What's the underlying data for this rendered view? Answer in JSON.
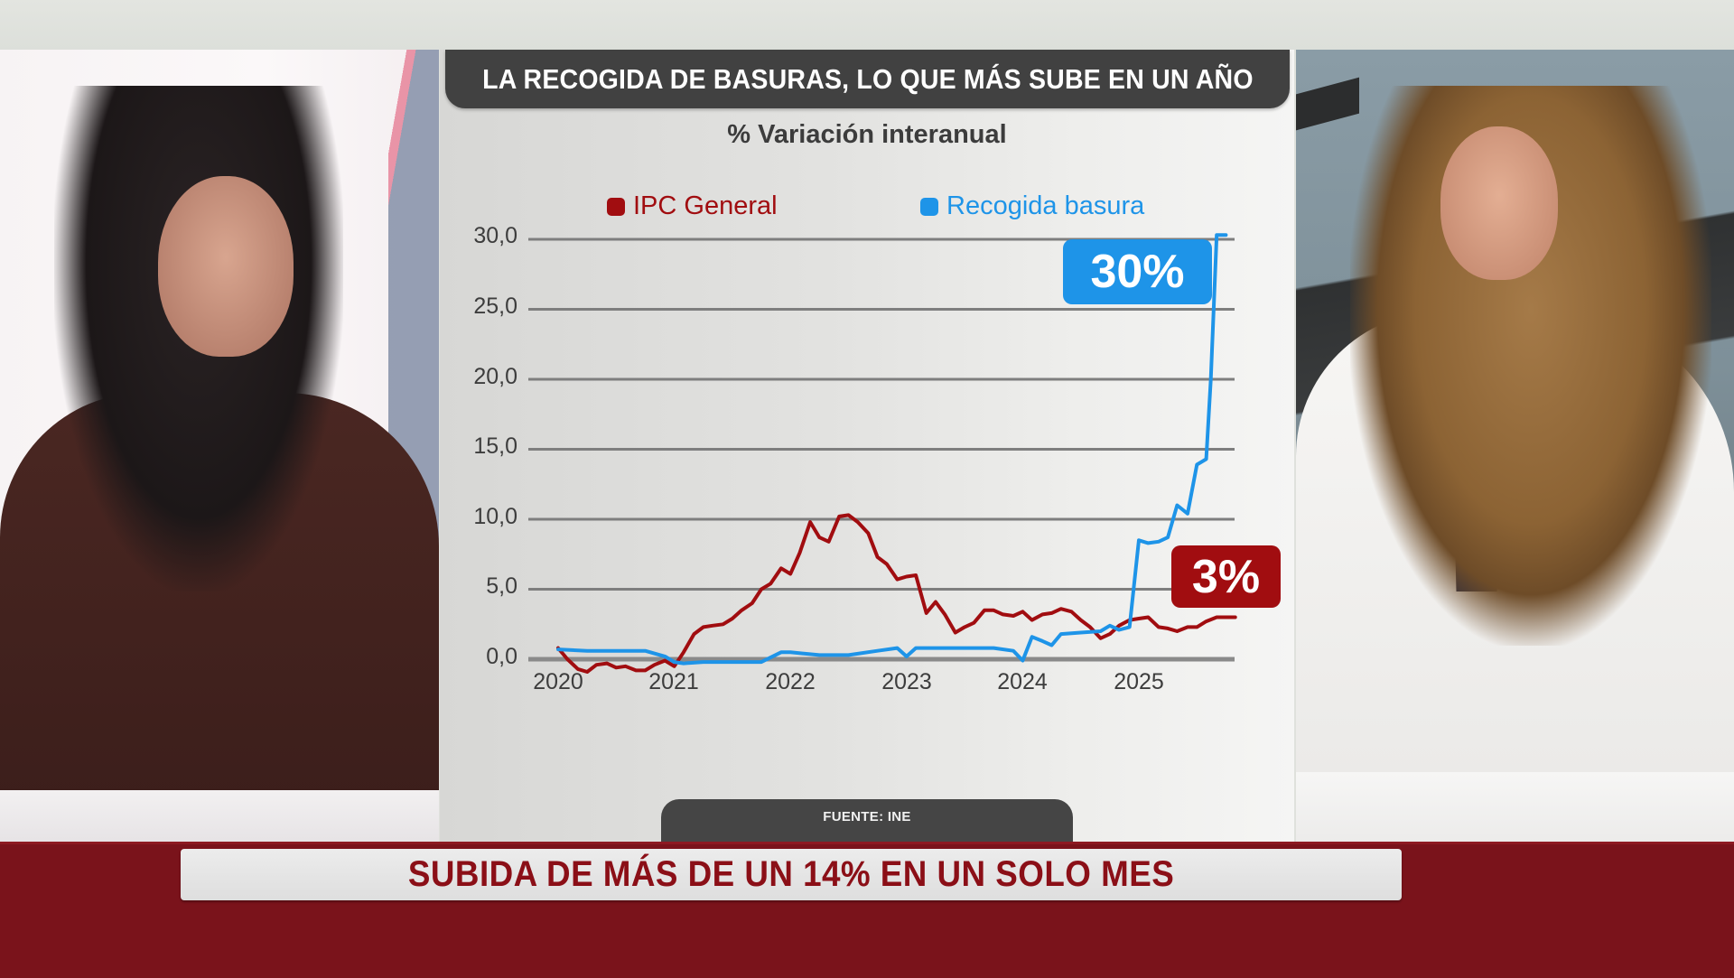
{
  "broadcast": {
    "lower_third_headline": "SUBIDA DE MÁS DE UN 14% EN UN SOLO MES"
  },
  "chart_panel": {
    "title": "LA RECOGIDA DE BASURAS, LO QUE MÁS SUBE EN UN AÑO",
    "subtitle": "% Variación interanual",
    "source": "FUENTE: INE",
    "badges": {
      "recogida": "30%",
      "ipc": "3%"
    }
  },
  "colors": {
    "ipc": "#a10d10",
    "recogida": "#1e94e8",
    "title_bar": "#414141",
    "lower_third_band": "#7a131b"
  },
  "chart_data": {
    "type": "line",
    "title": "LA RECOGIDA DE BASURAS, LO QUE MÁS SUBE EN UN AÑO",
    "subtitle": "% Variación interanual",
    "xlabel": "",
    "ylabel": "% Variación interanual",
    "ylim": [
      0,
      30
    ],
    "yticks": [
      "0,0",
      "5,0",
      "10,0",
      "15,0",
      "20,0",
      "25,0",
      "30,0"
    ],
    "ytick_values": [
      0,
      5,
      10,
      15,
      20,
      25,
      30
    ],
    "xticks": [
      "2020",
      "2021",
      "2022",
      "2023",
      "2024",
      "2025"
    ],
    "xtick_values": [
      2020,
      2021,
      2022,
      2023,
      2024,
      2025
    ],
    "grid": true,
    "legend_position": "top",
    "source": "FUENTE: INE",
    "series": [
      {
        "name": "IPC General",
        "color": "#a10d10",
        "x": [
          2020.0,
          2020.08,
          2020.17,
          2020.25,
          2020.33,
          2020.42,
          2020.5,
          2020.58,
          2020.67,
          2020.75,
          2020.83,
          2020.92,
          2021.0,
          2021.08,
          2021.17,
          2021.25,
          2021.33,
          2021.42,
          2021.5,
          2021.58,
          2021.67,
          2021.75,
          2021.83,
          2021.92,
          2022.0,
          2022.08,
          2022.17,
          2022.25,
          2022.33,
          2022.42,
          2022.5,
          2022.58,
          2022.67,
          2022.75,
          2022.83,
          2022.92,
          2023.0,
          2023.08,
          2023.17,
          2023.25,
          2023.33,
          2023.42,
          2023.5,
          2023.58,
          2023.67,
          2023.75,
          2023.83,
          2023.92,
          2024.0,
          2024.08,
          2024.17,
          2024.25,
          2024.33,
          2024.42,
          2024.5,
          2024.58,
          2024.67,
          2024.75,
          2024.83,
          2024.92,
          2025.0,
          2025.08,
          2025.17,
          2025.25,
          2025.33,
          2025.42,
          2025.5,
          2025.58,
          2025.67,
          2025.75,
          2025.83
        ],
        "values": [
          0.8,
          0.0,
          -0.7,
          -0.9,
          -0.4,
          -0.3,
          -0.6,
          -0.5,
          -0.8,
          -0.8,
          -0.4,
          -0.1,
          -0.5,
          0.5,
          1.8,
          2.3,
          2.4,
          2.5,
          2.9,
          3.5,
          4.0,
          5.0,
          5.4,
          6.5,
          6.1,
          7.6,
          9.8,
          8.7,
          8.4,
          10.2,
          10.3,
          9.8,
          9.0,
          7.3,
          6.8,
          5.7,
          5.9,
          6.0,
          3.3,
          4.1,
          3.2,
          1.9,
          2.3,
          2.6,
          3.5,
          3.5,
          3.2,
          3.1,
          3.4,
          2.8,
          3.2,
          3.3,
          3.6,
          3.4,
          2.8,
          2.3,
          1.5,
          1.8,
          2.4,
          2.8,
          2.9,
          3.0,
          2.3,
          2.2,
          2.0,
          2.3,
          2.3,
          2.7,
          3.0,
          3.0,
          3.0
        ]
      },
      {
        "name": "Recogida basura",
        "color": "#1e94e8",
        "x": [
          2020.0,
          2020.25,
          2020.5,
          2020.75,
          2020.92,
          2021.0,
          2021.08,
          2021.25,
          2021.5,
          2021.75,
          2021.92,
          2022.0,
          2022.25,
          2022.5,
          2022.75,
          2022.92,
          2023.0,
          2023.08,
          2023.25,
          2023.5,
          2023.75,
          2023.92,
          2024.0,
          2024.08,
          2024.17,
          2024.25,
          2024.33,
          2024.5,
          2024.67,
          2024.75,
          2024.83,
          2024.92,
          2025.0,
          2025.08,
          2025.17,
          2025.25,
          2025.33,
          2025.42,
          2025.5,
          2025.58,
          2025.62,
          2025.67,
          2025.75
        ],
        "values": [
          0.7,
          0.6,
          0.6,
          0.6,
          0.2,
          -0.2,
          -0.3,
          -0.2,
          -0.2,
          -0.2,
          0.5,
          0.5,
          0.3,
          0.3,
          0.6,
          0.8,
          0.2,
          0.8,
          0.8,
          0.8,
          0.8,
          0.6,
          -0.1,
          1.6,
          1.3,
          1.0,
          1.8,
          1.9,
          2.0,
          2.4,
          2.1,
          2.3,
          8.5,
          8.3,
          8.4,
          8.7,
          11.0,
          10.4,
          13.9,
          14.3,
          20.0,
          30.3,
          30.3
        ]
      }
    ],
    "annotations": [
      {
        "text": "30%",
        "series": "Recogida basura",
        "color": "#1e94e8"
      },
      {
        "text": "3%",
        "series": "IPC General",
        "color": "#a10d10"
      }
    ]
  }
}
